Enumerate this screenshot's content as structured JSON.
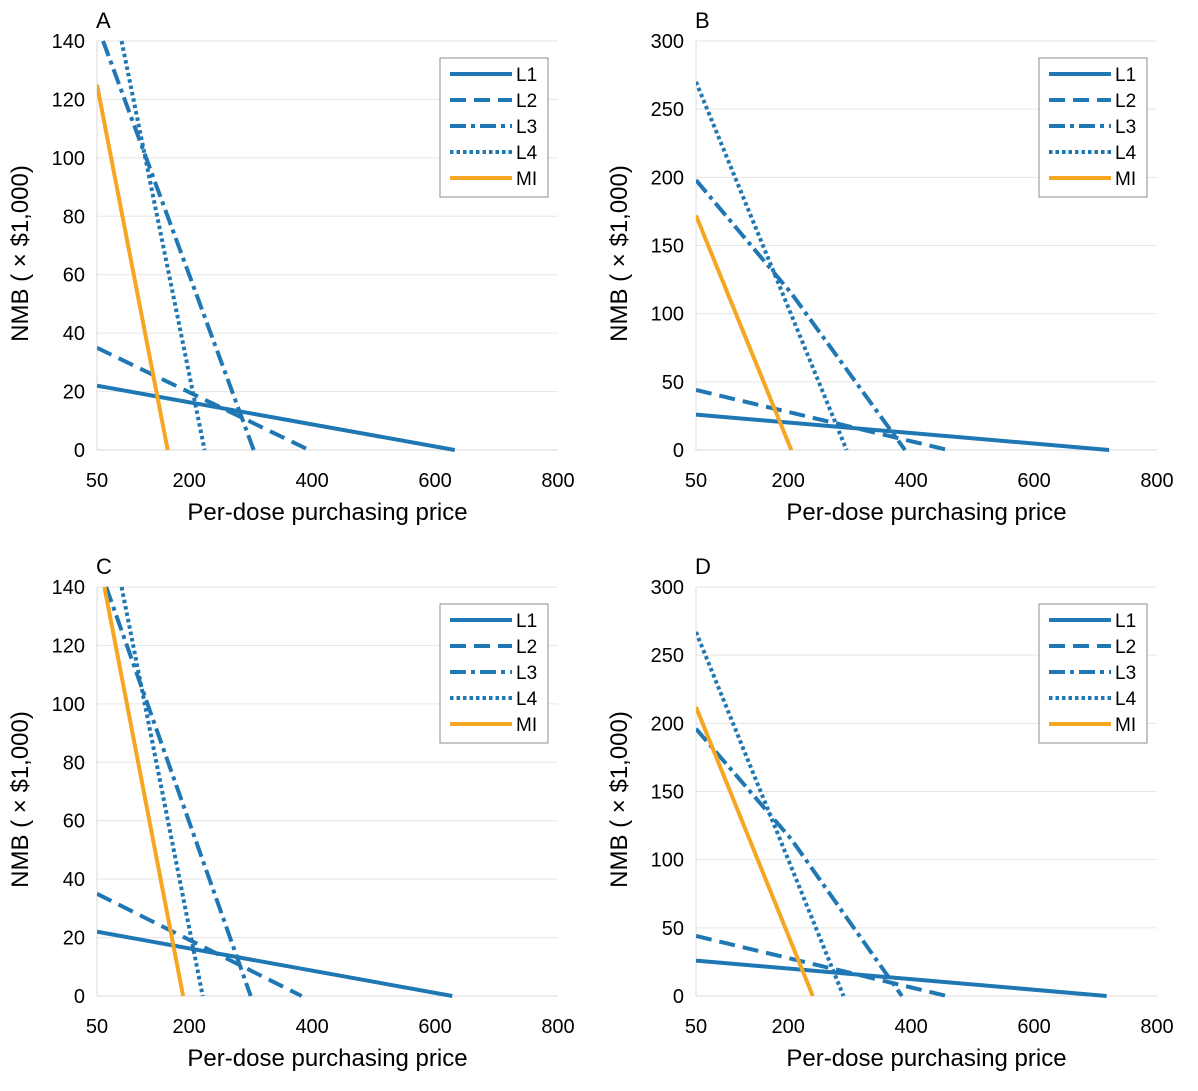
{
  "colors": {
    "blue": "#1f77b4",
    "orange": "#f5a623",
    "grid": "#e6e6e6"
  },
  "chart_data": [
    {
      "type": "line",
      "panel_label": "A",
      "xlabel": "Per-dose purchasing price",
      "ylabel": "NMB ( × $1,000)",
      "xlim": [
        50,
        800
      ],
      "ylim": [
        0,
        140
      ],
      "xticks": [
        50,
        200,
        400,
        600,
        800
      ],
      "yticks": [
        0,
        20,
        40,
        60,
        80,
        100,
        120,
        140
      ],
      "grid": "horizontal",
      "legend": "top-right",
      "series": [
        {
          "name": "L1",
          "style": "solid",
          "color": "#1f77b4",
          "points": [
            [
              50,
              22
            ],
            [
              632,
              0
            ]
          ]
        },
        {
          "name": "L2",
          "style": "dashed",
          "color": "#1f77b4",
          "points": [
            [
              50,
              35
            ],
            [
              395,
              0
            ]
          ]
        },
        {
          "name": "L3",
          "style": "dashdot",
          "color": "#1f77b4",
          "points": [
            [
              60,
              140
            ],
            [
              305,
              0
            ]
          ]
        },
        {
          "name": "L4",
          "style": "dotted",
          "color": "#1f77b4",
          "points": [
            [
              90,
              140
            ],
            [
              225,
              0
            ]
          ]
        },
        {
          "name": "MI",
          "style": "solid",
          "color": "#f5a623",
          "points": [
            [
              50,
              125
            ],
            [
              165,
              0
            ]
          ]
        }
      ]
    },
    {
      "type": "line",
      "panel_label": "B",
      "xlabel": "Per-dose purchasing price",
      "ylabel": "NMB ( × $1,000)",
      "xlim": [
        50,
        800
      ],
      "ylim": [
        0,
        300
      ],
      "xticks": [
        50,
        200,
        400,
        600,
        800
      ],
      "yticks": [
        0,
        50,
        100,
        150,
        200,
        250,
        300
      ],
      "grid": "horizontal",
      "legend": "top-right",
      "series": [
        {
          "name": "L1",
          "style": "solid",
          "color": "#1f77b4",
          "points": [
            [
              50,
              26
            ],
            [
              722,
              0
            ]
          ]
        },
        {
          "name": "L2",
          "style": "dashed",
          "color": "#1f77b4",
          "points": [
            [
              50,
              44
            ],
            [
              460,
              0
            ]
          ]
        },
        {
          "name": "L3",
          "style": "dashdot",
          "color": "#1f77b4",
          "points": [
            [
              50,
              198
            ],
            [
              205,
              115
            ],
            [
              390,
              0
            ]
          ]
        },
        {
          "name": "L4",
          "style": "dotted",
          "color": "#1f77b4",
          "points": [
            [
              50,
              270
            ],
            [
              295,
              0
            ]
          ]
        },
        {
          "name": "MI",
          "style": "solid",
          "color": "#f5a623",
          "points": [
            [
              50,
              172
            ],
            [
              205,
              0
            ]
          ]
        }
      ]
    },
    {
      "type": "line",
      "panel_label": "C",
      "xlabel": "Per-dose purchasing price",
      "ylabel": "NMB ( × $1,000)",
      "xlim": [
        50,
        800
      ],
      "ylim": [
        0,
        140
      ],
      "xticks": [
        50,
        200,
        400,
        600,
        800
      ],
      "yticks": [
        0,
        20,
        40,
        60,
        80,
        100,
        120,
        140
      ],
      "grid": "horizontal",
      "legend": "top-right",
      "series": [
        {
          "name": "L1",
          "style": "solid",
          "color": "#1f77b4",
          "points": [
            [
              50,
              22
            ],
            [
              628,
              0
            ]
          ]
        },
        {
          "name": "L2",
          "style": "dashed",
          "color": "#1f77b4",
          "points": [
            [
              50,
              35
            ],
            [
              383,
              0
            ]
          ]
        },
        {
          "name": "L3",
          "style": "dashdot",
          "color": "#1f77b4",
          "points": [
            [
              65,
              140
            ],
            [
              300,
              0
            ]
          ]
        },
        {
          "name": "L4",
          "style": "dotted",
          "color": "#1f77b4",
          "points": [
            [
              90,
              140
            ],
            [
              222,
              0
            ]
          ]
        },
        {
          "name": "MI",
          "style": "solid",
          "color": "#f5a623",
          "points": [
            [
              62,
              140
            ],
            [
              190,
              0
            ]
          ]
        }
      ]
    },
    {
      "type": "line",
      "panel_label": "D",
      "xlabel": "Per-dose purchasing price",
      "ylabel": "NMB ( × $1,000)",
      "xlim": [
        50,
        800
      ],
      "ylim": [
        0,
        300
      ],
      "xticks": [
        50,
        200,
        400,
        600,
        800
      ],
      "yticks": [
        0,
        50,
        100,
        150,
        200,
        250,
        300
      ],
      "grid": "horizontal",
      "legend": "top-right",
      "series": [
        {
          "name": "L1",
          "style": "solid",
          "color": "#1f77b4",
          "points": [
            [
              50,
              26
            ],
            [
              718,
              0
            ]
          ]
        },
        {
          "name": "L2",
          "style": "dashed",
          "color": "#1f77b4",
          "points": [
            [
              50,
              44
            ],
            [
              458,
              0
            ]
          ]
        },
        {
          "name": "L3",
          "style": "dashdot",
          "color": "#1f77b4",
          "points": [
            [
              50,
              196
            ],
            [
              205,
              115
            ],
            [
              385,
              0
            ]
          ]
        },
        {
          "name": "L4",
          "style": "dotted",
          "color": "#1f77b4",
          "points": [
            [
              50,
              267
            ],
            [
              290,
              0
            ]
          ]
        },
        {
          "name": "MI",
          "style": "solid",
          "color": "#f5a623",
          "points": [
            [
              50,
              212
            ],
            [
              240,
              0
            ]
          ]
        }
      ]
    }
  ]
}
